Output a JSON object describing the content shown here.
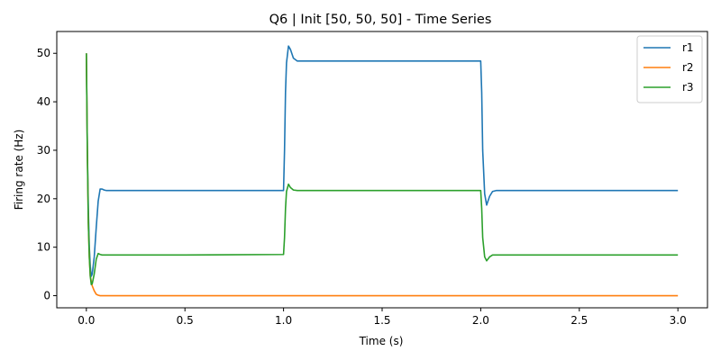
{
  "chart_data": {
    "type": "line",
    "title": "Q6 | Init [50, 50, 50] - Time Series",
    "xlabel": "Time (s)",
    "ylabel": "Firing rate (Hz)",
    "xlim": [
      -0.15,
      3.15
    ],
    "ylim": [
      -2.5,
      54.5
    ],
    "xticks": [
      0.0,
      0.5,
      1.0,
      1.5,
      2.0,
      2.5,
      3.0
    ],
    "xtick_labels": [
      "0.0",
      "0.5",
      "1.0",
      "1.5",
      "2.0",
      "2.5",
      "3.0"
    ],
    "yticks": [
      0,
      10,
      20,
      30,
      40,
      50
    ],
    "ytick_labels": [
      "0",
      "10",
      "20",
      "30",
      "40",
      "50"
    ],
    "grid": false,
    "legend": "top-right",
    "series": [
      {
        "name": "r1",
        "color": "#1f77b4",
        "points": [
          [
            0.0,
            50
          ],
          [
            0.005,
            30
          ],
          [
            0.01,
            18
          ],
          [
            0.015,
            10
          ],
          [
            0.02,
            6
          ],
          [
            0.025,
            4
          ],
          [
            0.03,
            4.5
          ],
          [
            0.04,
            8
          ],
          [
            0.05,
            14
          ],
          [
            0.06,
            19.5
          ],
          [
            0.07,
            22
          ],
          [
            0.08,
            22
          ],
          [
            0.09,
            21.8
          ],
          [
            0.1,
            21.7
          ],
          [
            0.2,
            21.7
          ],
          [
            0.5,
            21.7
          ],
          [
            0.9,
            21.7
          ],
          [
            1.0,
            21.7
          ],
          [
            1.005,
            30
          ],
          [
            1.01,
            42
          ],
          [
            1.015,
            48
          ],
          [
            1.025,
            51.5
          ],
          [
            1.035,
            50.8
          ],
          [
            1.05,
            49
          ],
          [
            1.07,
            48.4
          ],
          [
            1.1,
            48.4
          ],
          [
            1.5,
            48.4
          ],
          [
            1.99,
            48.4
          ],
          [
            2.0,
            48.4
          ],
          [
            2.005,
            42
          ],
          [
            2.01,
            30
          ],
          [
            2.02,
            21
          ],
          [
            2.03,
            18.7
          ],
          [
            2.045,
            20.5
          ],
          [
            2.06,
            21.5
          ],
          [
            2.08,
            21.7
          ],
          [
            2.2,
            21.7
          ],
          [
            2.5,
            21.7
          ],
          [
            3.0,
            21.7
          ]
        ]
      },
      {
        "name": "r2",
        "color": "#ff7f0e",
        "points": [
          [
            0.0,
            50
          ],
          [
            0.005,
            30
          ],
          [
            0.01,
            15
          ],
          [
            0.015,
            8
          ],
          [
            0.02,
            4
          ],
          [
            0.03,
            2
          ],
          [
            0.04,
            1
          ],
          [
            0.05,
            0.3
          ],
          [
            0.06,
            0.1
          ],
          [
            0.07,
            0
          ],
          [
            0.1,
            0
          ],
          [
            1.0,
            0
          ],
          [
            2.0,
            0
          ],
          [
            3.0,
            0
          ]
        ]
      },
      {
        "name": "r3",
        "color": "#2ca02c",
        "points": [
          [
            0.0,
            50
          ],
          [
            0.005,
            30
          ],
          [
            0.01,
            15
          ],
          [
            0.015,
            8
          ],
          [
            0.02,
            4
          ],
          [
            0.025,
            2.3
          ],
          [
            0.03,
            2.5
          ],
          [
            0.04,
            4.5
          ],
          [
            0.05,
            7.5
          ],
          [
            0.06,
            8.7
          ],
          [
            0.07,
            8.5
          ],
          [
            0.08,
            8.4
          ],
          [
            0.1,
            8.4
          ],
          [
            0.5,
            8.4
          ],
          [
            1.0,
            8.5
          ],
          [
            1.005,
            12
          ],
          [
            1.01,
            18
          ],
          [
            1.015,
            21.5
          ],
          [
            1.025,
            23
          ],
          [
            1.035,
            22.3
          ],
          [
            1.05,
            21.8
          ],
          [
            1.07,
            21.7
          ],
          [
            1.5,
            21.7
          ],
          [
            2.0,
            21.7
          ],
          [
            2.005,
            18
          ],
          [
            2.01,
            12
          ],
          [
            2.02,
            8
          ],
          [
            2.03,
            7.2
          ],
          [
            2.045,
            8
          ],
          [
            2.06,
            8.4
          ],
          [
            2.1,
            8.4
          ],
          [
            2.5,
            8.4
          ],
          [
            3.0,
            8.4
          ]
        ]
      }
    ]
  }
}
